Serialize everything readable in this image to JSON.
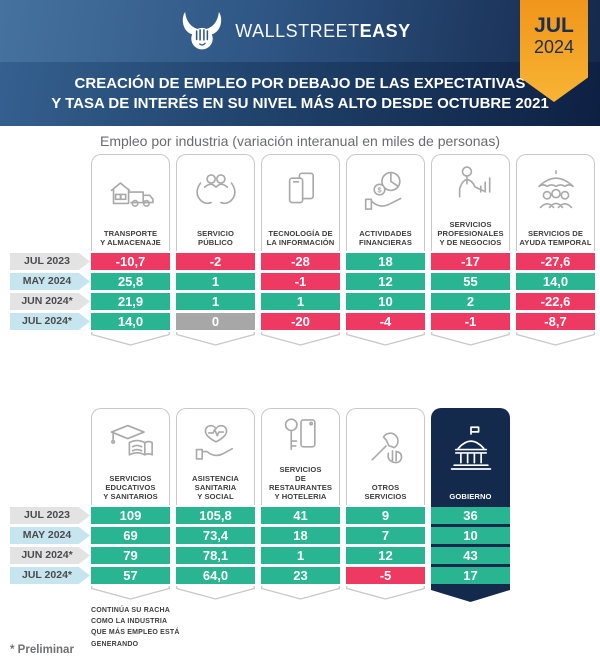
{
  "brand": {
    "name_light": "WALLSTREET",
    "name_bold": "EASY"
  },
  "badge": {
    "month": "JUL",
    "year": "2024"
  },
  "title": {
    "line1": "CREACIÓN DE EMPLEO POR DEBAJO DE LAS EXPECTATIVAS",
    "line2": "Y TASA DE INTERÉS EN SU NIVEL MÁS ALTO DESDE OCTUBRE 2021"
  },
  "subtitle": "Empleo por industria (variación interanual en miles de personas)",
  "periods": [
    {
      "label": "JUL 2023",
      "tone": "gray"
    },
    {
      "label": "MAY 2024",
      "tone": "blue"
    },
    {
      "label": "JUN 2024*",
      "tone": "gray"
    },
    {
      "label": "JUL 2024*",
      "tone": "blue"
    }
  ],
  "tables": [
    {
      "columns": [
        {
          "icon": "transport-icon",
          "label": "TRANSPORTE\nY ALMACENAJE",
          "cells": [
            {
              "text": "-10,7",
              "tone": "red"
            },
            {
              "text": "25,8",
              "tone": "green"
            },
            {
              "text": "21,9",
              "tone": "green"
            },
            {
              "text": "14,0",
              "tone": "green"
            }
          ]
        },
        {
          "icon": "public-service-icon",
          "label": "SERVICIO\nPÚBLICO",
          "cells": [
            {
              "text": "-2",
              "tone": "red"
            },
            {
              "text": "1",
              "tone": "green"
            },
            {
              "text": "1",
              "tone": "green"
            },
            {
              "text": "0",
              "tone": "gray"
            }
          ]
        },
        {
          "icon": "information-technology-icon",
          "label": "TECNOLOGÍA DE\nLA INFORMACIÓN",
          "cells": [
            {
              "text": "-28",
              "tone": "red"
            },
            {
              "text": "-1",
              "tone": "red"
            },
            {
              "text": "1",
              "tone": "green"
            },
            {
              "text": "-20",
              "tone": "red"
            }
          ]
        },
        {
          "icon": "financial-activities-icon",
          "label": "ACTIVIDADES\nFINANCIERAS",
          "cells": [
            {
              "text": "18",
              "tone": "green"
            },
            {
              "text": "12",
              "tone": "green"
            },
            {
              "text": "10",
              "tone": "green"
            },
            {
              "text": "-4",
              "tone": "red"
            }
          ]
        },
        {
          "icon": "professional-services-icon",
          "label": "SERVICIOS\nPROFESIONALES\nY DE NEGOCIOS",
          "cells": [
            {
              "text": "-17",
              "tone": "red"
            },
            {
              "text": "55",
              "tone": "green"
            },
            {
              "text": "2",
              "tone": "green"
            },
            {
              "text": "-1",
              "tone": "red"
            }
          ]
        },
        {
          "icon": "temporary-help-icon",
          "label": "SERVICIOS DE\nAYUDA TEMPORAL",
          "cells": [
            {
              "text": "-27,6",
              "tone": "red"
            },
            {
              "text": "14,0",
              "tone": "green"
            },
            {
              "text": "-22,6",
              "tone": "red"
            },
            {
              "text": "-8,7",
              "tone": "red"
            }
          ]
        }
      ]
    },
    {
      "columns": [
        {
          "icon": "education-health-icon",
          "label": "SERVICIOS\nEDUCATIVOS\nY SANITARIOS",
          "cells": [
            {
              "text": "109",
              "tone": "green"
            },
            {
              "text": "69",
              "tone": "green"
            },
            {
              "text": "79",
              "tone": "green"
            },
            {
              "text": "57",
              "tone": "green"
            }
          ],
          "note": "CONTINÚA SU RACHA\nCOMO LA INDUSTRIA\nQUE MÁS EMPLEO ESTÁ\nGENERANDO"
        },
        {
          "icon": "health-social-icon",
          "label": "ASISTENCIA\nSANITARIA\nY SOCIAL",
          "cells": [
            {
              "text": "105,8",
              "tone": "green"
            },
            {
              "text": "73,4",
              "tone": "green"
            },
            {
              "text": "78,1",
              "tone": "green"
            },
            {
              "text": "64,0",
              "tone": "green"
            }
          ]
        },
        {
          "icon": "restaurants-hotels-icon",
          "label": "SERVICIOS\nDE RESTAURANTES\nY HOTELERIA",
          "cells": [
            {
              "text": "41",
              "tone": "green"
            },
            {
              "text": "18",
              "tone": "green"
            },
            {
              "text": "1",
              "tone": "green"
            },
            {
              "text": "23",
              "tone": "green"
            }
          ]
        },
        {
          "icon": "other-services-icon",
          "label": "OTROS\nSERVICIOS",
          "cells": [
            {
              "text": "9",
              "tone": "green"
            },
            {
              "text": "7",
              "tone": "green"
            },
            {
              "text": "12",
              "tone": "green"
            },
            {
              "text": "-5",
              "tone": "red"
            }
          ]
        },
        {
          "icon": "government-icon",
          "label": "GOBIERNO",
          "highlight": true,
          "cells": [
            {
              "text": "36",
              "tone": "green"
            },
            {
              "text": "10",
              "tone": "green"
            },
            {
              "text": "43",
              "tone": "green"
            },
            {
              "text": "17",
              "tone": "green"
            }
          ]
        }
      ]
    }
  ],
  "footnotes": {
    "preliminary": "* Preliminar"
  },
  "colors": {
    "negative_red": "#ee3a63",
    "positive_green": "#2ab592",
    "neutral_gray": "#a7a7a7",
    "navy": "#142a4c",
    "accent_orange": "#f5a41f",
    "period_gray": "#e3e3e4",
    "period_blue": "#c6e5ef"
  },
  "chart_data": {
    "type": "table",
    "title": "Empleo por industria (variación interanual en miles de personas)",
    "unit": "miles de personas, variación interanual",
    "rows": [
      "JUL 2023",
      "MAY 2024",
      "JUN 2024*",
      "JUL 2024*"
    ],
    "series": [
      {
        "name": "Transporte y Almacenaje",
        "values": [
          -10.7,
          25.8,
          21.9,
          14.0
        ]
      },
      {
        "name": "Servicio Público",
        "values": [
          -2,
          1,
          1,
          0
        ]
      },
      {
        "name": "Tecnología de la Información",
        "values": [
          -28,
          -1,
          1,
          -20
        ]
      },
      {
        "name": "Actividades Financieras",
        "values": [
          18,
          12,
          10,
          -4
        ]
      },
      {
        "name": "Servicios Profesionales y de Negocios",
        "values": [
          -17,
          55,
          2,
          -1
        ]
      },
      {
        "name": "Servicios de Ayuda Temporal",
        "values": [
          -27.6,
          14.0,
          -22.6,
          -8.7
        ]
      },
      {
        "name": "Servicios Educativos y Sanitarios",
        "values": [
          109,
          69,
          79,
          57
        ]
      },
      {
        "name": "Asistencia Sanitaria y Social",
        "values": [
          105.8,
          73.4,
          78.1,
          64.0
        ]
      },
      {
        "name": "Servicios de Restaurantes y Hoteleria",
        "values": [
          41,
          18,
          1,
          23
        ]
      },
      {
        "name": "Otros Servicios",
        "values": [
          9,
          7,
          12,
          -5
        ]
      },
      {
        "name": "Gobierno",
        "values": [
          36,
          10,
          43,
          17
        ]
      }
    ]
  }
}
